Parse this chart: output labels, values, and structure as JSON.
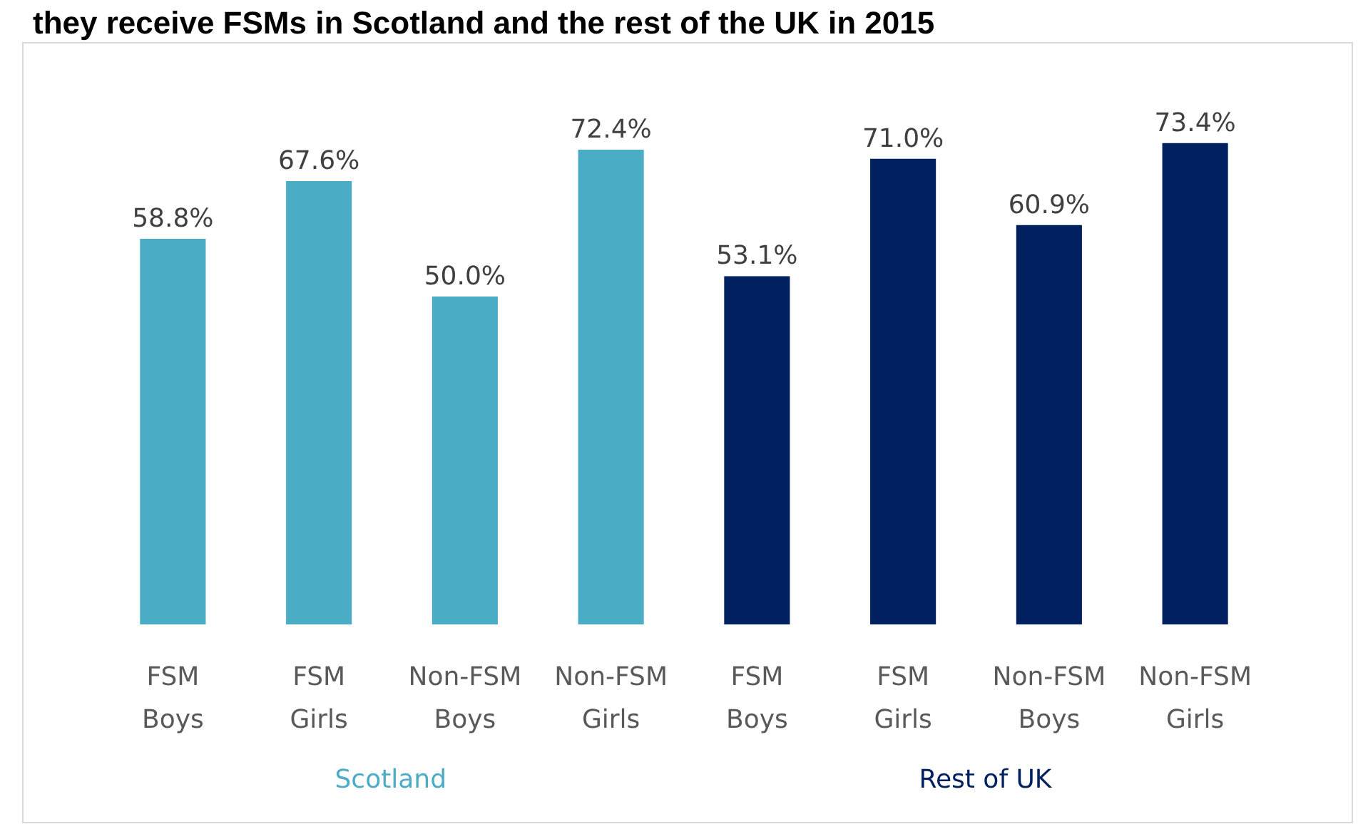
{
  "chart_data": {
    "type": "bar",
    "title": "they receive FSMs in Scotland and the rest of the UK in 2015",
    "categories": [
      "FSM\nBoys",
      "FSM\nGirls",
      "Non-FSM\nBoys",
      "Non-FSM\nGirls",
      "FSM\nBoys",
      "FSM\nGirls",
      "Non-FSM\nBoys",
      "Non-FSM\nGirls"
    ],
    "series": [
      {
        "name": "Scotland",
        "color": "#4bacc6",
        "values": [
          58.8,
          67.6,
          50.0,
          72.4,
          null,
          null,
          null,
          null
        ],
        "value_labels": [
          "58.8%",
          "67.6%",
          "50.0%",
          "72.4%",
          null,
          null,
          null,
          null
        ]
      },
      {
        "name": "Rest of UK",
        "color": "#002060",
        "values": [
          null,
          null,
          null,
          null,
          53.1,
          71.0,
          60.9,
          73.4
        ],
        "value_labels": [
          null,
          null,
          null,
          null,
          "53.1%",
          "71.0%",
          "60.9%",
          "73.4%"
        ]
      }
    ],
    "stacked": true,
    "legend": false
  }
}
